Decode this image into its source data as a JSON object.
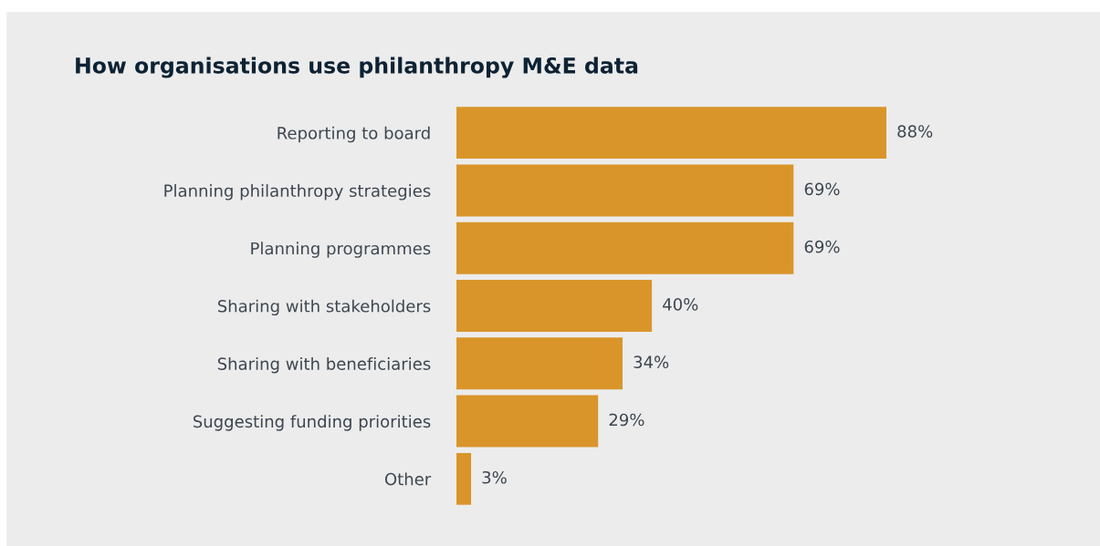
{
  "chart_data": {
    "type": "bar",
    "orientation": "horizontal",
    "title": "How organisations use philanthropy M&E data",
    "categories": [
      "Reporting to board",
      "Planning philanthropy strategies",
      "Planning programmes",
      "Sharing with stakeholders",
      "Sharing with beneficiaries",
      "Suggesting funding priorities",
      "Other"
    ],
    "values": [
      88,
      69,
      69,
      40,
      34,
      29,
      3
    ],
    "value_labels": [
      "88%",
      "69%",
      "69%",
      "40%",
      "34%",
      "29%",
      "3%"
    ],
    "color": "#d9952a",
    "tick_labels": "y",
    "grid": false
  }
}
